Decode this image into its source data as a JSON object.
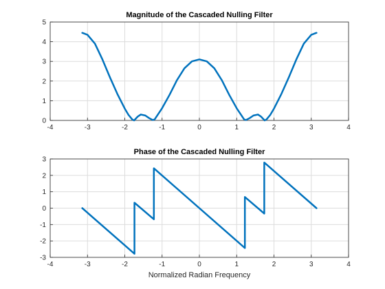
{
  "colors": {
    "line": "#0072BD",
    "grid": "#dcdcdc",
    "axis": "#262626"
  },
  "chart_data": [
    {
      "type": "line",
      "title": "Magnitude of the Cascaded Nulling Filter",
      "xlabel": "",
      "ylabel": "",
      "xlim": [
        -4,
        4
      ],
      "ylim": [
        0,
        5
      ],
      "xticks": [
        -4,
        -3,
        -2,
        -1,
        0,
        1,
        2,
        3,
        4
      ],
      "yticks": [
        0,
        1,
        2,
        3,
        4,
        5
      ],
      "grid": true,
      "series": [
        {
          "x": [
            -3.14,
            -3.0,
            -2.8,
            -2.6,
            -2.4,
            -2.2,
            -2.0,
            -1.9,
            -1.8,
            -1.75,
            -1.7,
            -1.65,
            -1.57,
            -1.45,
            -1.35,
            -1.25,
            -1.2,
            -1.0,
            -0.8,
            -0.6,
            -0.4,
            -0.2,
            0.0,
            0.2,
            0.4,
            0.6,
            0.8,
            1.0,
            1.2,
            1.25,
            1.35,
            1.45,
            1.57,
            1.65,
            1.7,
            1.75,
            1.8,
            1.9,
            2.0,
            2.2,
            2.4,
            2.6,
            2.8,
            3.0,
            3.14
          ],
          "y": [
            4.45,
            4.35,
            3.9,
            3.1,
            2.2,
            1.35,
            0.6,
            0.28,
            0.05,
            0.0,
            0.1,
            0.2,
            0.3,
            0.25,
            0.12,
            0.02,
            0.05,
            0.62,
            1.3,
            2.05,
            2.65,
            3.0,
            3.1,
            3.0,
            2.65,
            2.05,
            1.3,
            0.62,
            0.05,
            0.02,
            0.12,
            0.25,
            0.3,
            0.2,
            0.1,
            0.0,
            0.05,
            0.28,
            0.6,
            1.35,
            2.2,
            3.1,
            3.9,
            4.35,
            4.45
          ]
        }
      ]
    },
    {
      "type": "line",
      "title": "Phase of the Cascaded Nulling Filter",
      "xlabel": "Normalized Radian Frequency",
      "ylabel": "",
      "xlim": [
        -4,
        4
      ],
      "ylim": [
        -3,
        3
      ],
      "xticks": [
        -4,
        -3,
        -2,
        -1,
        0,
        1,
        2,
        3,
        4
      ],
      "yticks": [
        -3,
        -2,
        -1,
        0,
        1,
        2,
        3
      ],
      "grid": true,
      "series": [
        {
          "x": [
            -3.14,
            -1.74,
            -1.74,
            -1.22,
            -1.22,
            1.22,
            1.22,
            1.74,
            1.74,
            3.14
          ],
          "y": [
            0.0,
            -2.78,
            0.33,
            -0.68,
            2.43,
            -2.43,
            0.68,
            -0.33,
            2.78,
            0.0
          ]
        }
      ]
    }
  ]
}
